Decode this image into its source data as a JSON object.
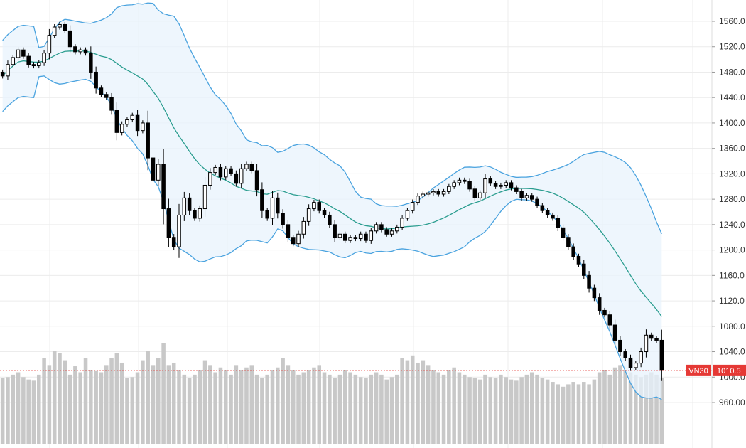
{
  "chart_data": {
    "type": "candlestick",
    "symbol": "VN30",
    "last_price_label": "1010.5",
    "ylim": [
      940,
      1580
    ],
    "y_ticks": [
      "1560.0",
      "1520.0",
      "1480.0",
      "1440.0",
      "1400.0",
      "1360.0",
      "1320.0",
      "1280.0",
      "1240.0",
      "1200.0",
      "1160.0",
      "1120.0",
      "1080.0",
      "1040.0",
      "1000.0",
      "960.00"
    ],
    "y_tick_values": [
      1560,
      1520,
      1480,
      1440,
      1400,
      1360,
      1320,
      1280,
      1240,
      1200,
      1160,
      1120,
      1080,
      1040,
      1000,
      960
    ],
    "grid": true,
    "colors": {
      "up": "#ffffff",
      "down": "#000000",
      "candle_outline": "#000000",
      "band_line": "#4aa3df",
      "band_fill": "#e8f3fc",
      "middle_line": "#2a9d8f",
      "volume": "#c8c8c8",
      "price_tag": "#e53935",
      "price_line": "#e53935",
      "grid": "#ececec"
    },
    "indicators": [
      "Bollinger Bands",
      "Volume"
    ],
    "close": [
      1474,
      1492,
      1503,
      1515,
      1505,
      1492,
      1490,
      1495,
      1510,
      1538,
      1551,
      1555,
      1545,
      1520,
      1512,
      1515,
      1510,
      1480,
      1455,
      1445,
      1440,
      1420,
      1385,
      1398,
      1405,
      1412,
      1388,
      1400,
      1345,
      1310,
      1335,
      1265,
      1220,
      1205,
      1255,
      1282,
      1262,
      1250,
      1265,
      1302,
      1322,
      1330,
      1315,
      1328,
      1320,
      1305,
      1328,
      1335,
      1325,
      1295,
      1262,
      1250,
      1282,
      1258,
      1240,
      1220,
      1210,
      1225,
      1245,
      1265,
      1275,
      1262,
      1255,
      1240,
      1220,
      1225,
      1215,
      1220,
      1218,
      1225,
      1215,
      1230,
      1240,
      1232,
      1225,
      1230,
      1236,
      1250,
      1262,
      1275,
      1285,
      1288,
      1290,
      1292,
      1288,
      1292,
      1300,
      1306,
      1310,
      1308,
      1296,
      1282,
      1290,
      1312,
      1305,
      1300,
      1302,
      1306,
      1298,
      1292,
      1282,
      1286,
      1280,
      1270,
      1262,
      1255,
      1250,
      1235,
      1220,
      1205,
      1190,
      1178,
      1160,
      1140,
      1125,
      1105,
      1098,
      1082,
      1058,
      1040,
      1030,
      1015,
      1022,
      1040,
      1066,
      1061,
      1058,
      1010.5
    ],
    "volume": [
      55,
      56,
      58,
      60,
      56,
      54,
      53,
      58,
      72,
      66,
      78,
      76,
      70,
      58,
      65,
      60,
      72,
      62,
      61,
      60,
      66,
      72,
      76,
      68,
      55,
      56,
      60,
      70,
      78,
      66,
      72,
      84,
      66,
      68,
      62,
      58,
      55,
      58,
      62,
      70,
      66,
      60,
      64,
      62,
      58,
      66,
      62,
      64,
      66,
      58,
      55,
      58,
      62,
      64,
      72,
      66,
      62,
      58,
      60,
      62,
      64,
      66,
      60,
      58,
      55,
      58,
      62,
      60,
      58,
      56,
      55,
      58,
      60,
      58,
      54,
      56,
      58,
      72,
      70,
      74,
      68,
      70,
      66,
      62,
      60,
      58,
      62,
      64,
      60,
      58,
      56,
      55,
      54,
      58,
      56,
      55,
      58,
      56,
      54,
      53,
      56,
      58,
      60,
      58,
      55,
      54,
      52,
      50,
      48,
      50,
      52,
      50,
      52,
      50,
      54,
      60,
      62,
      58,
      64,
      66,
      62,
      60,
      58,
      56,
      58,
      60,
      58,
      55
    ]
  },
  "price_tag": {
    "symbol_label": "VN30",
    "value_label": "1010.5"
  }
}
